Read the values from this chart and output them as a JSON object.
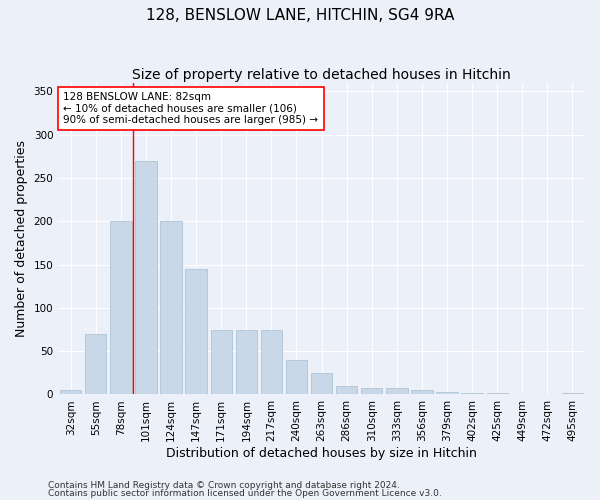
{
  "title1": "128, BENSLOW LANE, HITCHIN, SG4 9RA",
  "title2": "Size of property relative to detached houses in Hitchin",
  "xlabel": "Distribution of detached houses by size in Hitchin",
  "ylabel": "Number of detached properties",
  "categories": [
    "32sqm",
    "55sqm",
    "78sqm",
    "101sqm",
    "124sqm",
    "147sqm",
    "171sqm",
    "194sqm",
    "217sqm",
    "240sqm",
    "263sqm",
    "286sqm",
    "310sqm",
    "333sqm",
    "356sqm",
    "379sqm",
    "402sqm",
    "425sqm",
    "449sqm",
    "472sqm",
    "495sqm"
  ],
  "values": [
    5,
    70,
    200,
    270,
    200,
    145,
    75,
    75,
    75,
    40,
    25,
    10,
    8,
    8,
    5,
    3,
    2,
    2,
    1,
    1,
    2
  ],
  "bar_color": "#c8d8e8",
  "bar_edge_color": "#a8bece",
  "red_line_index": 2,
  "ylim": [
    0,
    360
  ],
  "yticks": [
    0,
    50,
    100,
    150,
    200,
    250,
    300,
    350
  ],
  "annotation_text": "128 BENSLOW LANE: 82sqm\n← 10% of detached houses are smaller (106)\n90% of semi-detached houses are larger (985) →",
  "footer1": "Contains HM Land Registry data © Crown copyright and database right 2024.",
  "footer2": "Contains public sector information licensed under the Open Government Licence v3.0.",
  "background_color": "#ecf0f8",
  "plot_background": "#ecf0f8",
  "grid_color": "#ffffff",
  "title1_fontsize": 11,
  "title2_fontsize": 10,
  "axis_label_fontsize": 9,
  "tick_fontsize": 7.5,
  "ann_fontsize": 7.5,
  "footer_fontsize": 6.5
}
